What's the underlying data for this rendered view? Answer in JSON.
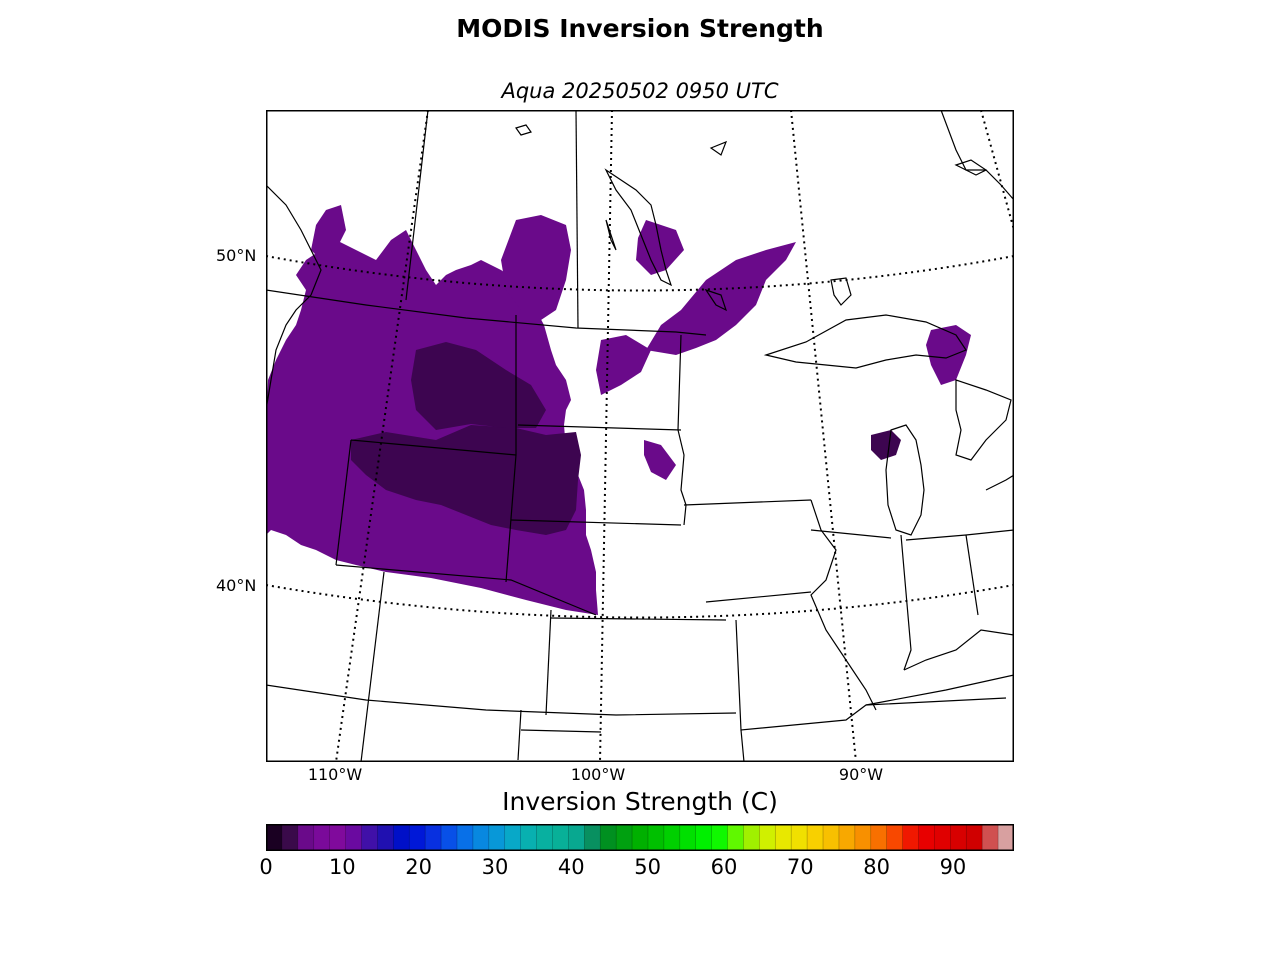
{
  "title": "MODIS Inversion Strength",
  "subtitle": "Aqua 20250502 0950 UTC",
  "map": {
    "lat_labels": [
      "50°N",
      "40°N"
    ],
    "lon_labels": [
      "110°W",
      "100°W",
      "90°W"
    ],
    "data_color": "#6a0a8a",
    "data_color_dark": "#3d0550"
  },
  "colorbar": {
    "title": "Inversion Strength (C)",
    "range": [
      0,
      98
    ],
    "ticks": [
      "0",
      "10",
      "20",
      "30",
      "40",
      "50",
      "60",
      "70",
      "80",
      "90"
    ],
    "colors": [
      "#1a0022",
      "#3a0a4a",
      "#6a0a8a",
      "#7a0a9a",
      "#800a9c",
      "#6a0aa0",
      "#4010a8",
      "#2010b0",
      "#0010c8",
      "#0018d8",
      "#0830e0",
      "#0850e8",
      "#0870e8",
      "#0888e0",
      "#0898d8",
      "#08a8c8",
      "#08b0b0",
      "#08b0a0",
      "#08b098",
      "#08a890",
      "#089060",
      "#009020",
      "#00a010",
      "#00b000",
      "#00c000",
      "#00d000",
      "#00e000",
      "#00f000",
      "#10f800",
      "#60f800",
      "#a0f000",
      "#d0f000",
      "#e8e800",
      "#f0e000",
      "#f8d000",
      "#f8c000",
      "#f8a800",
      "#f89000",
      "#f87000",
      "#f84800",
      "#f01800",
      "#e80000",
      "#e00000",
      "#d80000",
      "#d00000",
      "#d05050",
      "#d8a0a0"
    ]
  }
}
